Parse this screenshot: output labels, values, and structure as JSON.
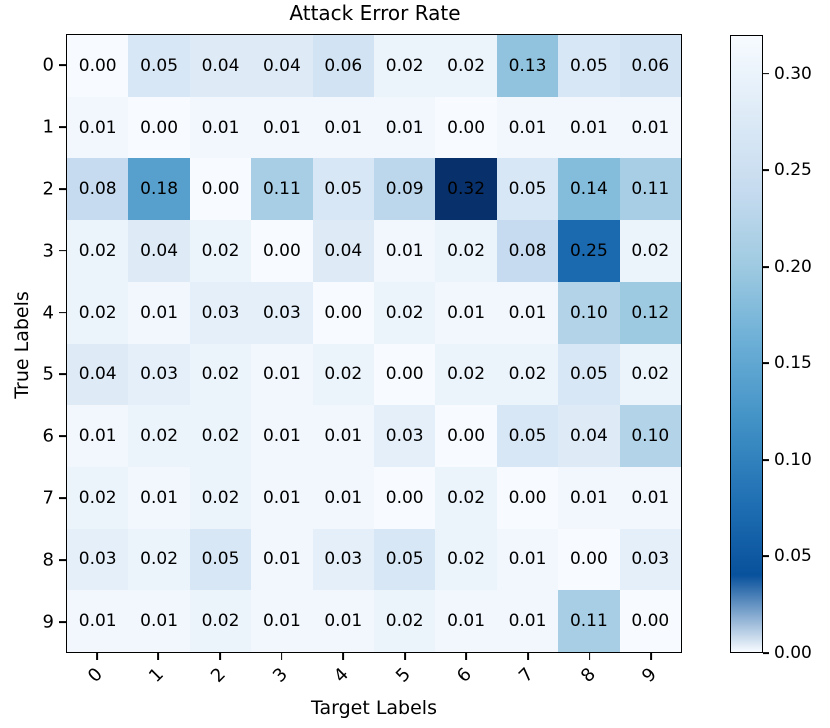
{
  "chart_data": {
    "type": "heatmap",
    "title": "Attack Error Rate",
    "xlabel": "Target Labels",
    "ylabel": "True Labels",
    "x_tick_labels": [
      "0",
      "1",
      "2",
      "3",
      "4",
      "5",
      "6",
      "7",
      "8",
      "9"
    ],
    "y_tick_labels": [
      "0",
      "1",
      "2",
      "3",
      "4",
      "5",
      "6",
      "7",
      "8",
      "9"
    ],
    "matrix": [
      [
        0.0,
        0.05,
        0.04,
        0.04,
        0.06,
        0.02,
        0.02,
        0.13,
        0.05,
        0.06
      ],
      [
        0.01,
        0.0,
        0.01,
        0.01,
        0.01,
        0.01,
        0.0,
        0.01,
        0.01,
        0.01
      ],
      [
        0.08,
        0.18,
        0.0,
        0.11,
        0.05,
        0.09,
        0.32,
        0.05,
        0.14,
        0.11
      ],
      [
        0.02,
        0.04,
        0.02,
        0.0,
        0.04,
        0.01,
        0.02,
        0.08,
        0.25,
        0.02
      ],
      [
        0.02,
        0.01,
        0.03,
        0.03,
        0.0,
        0.02,
        0.01,
        0.01,
        0.1,
        0.12
      ],
      [
        0.04,
        0.03,
        0.02,
        0.01,
        0.02,
        0.0,
        0.02,
        0.02,
        0.05,
        0.02
      ],
      [
        0.01,
        0.02,
        0.02,
        0.01,
        0.01,
        0.03,
        0.0,
        0.05,
        0.04,
        0.1
      ],
      [
        0.02,
        0.01,
        0.02,
        0.01,
        0.01,
        0.0,
        0.02,
        0.0,
        0.01,
        0.01
      ],
      [
        0.03,
        0.02,
        0.05,
        0.01,
        0.03,
        0.05,
        0.02,
        0.01,
        0.0,
        0.03
      ],
      [
        0.01,
        0.01,
        0.02,
        0.01,
        0.01,
        0.02,
        0.01,
        0.01,
        0.11,
        0.0
      ]
    ],
    "value_format_decimals": 2,
    "annotation_color": "#000000",
    "colormap": {
      "name": "Blues",
      "control_colors": [
        "#f7fbff",
        "#deebf7",
        "#c6dbef",
        "#9ecae1",
        "#6baed6",
        "#4292c6",
        "#2171b5",
        "#08519c",
        "#08306b"
      ]
    },
    "vmin": 0.0,
    "vmax": 0.32,
    "colorbar_tick_values": [
      0.0,
      0.05,
      0.1,
      0.15,
      0.2,
      0.25,
      0.3
    ],
    "colorbar_tick_labels": [
      "0.00",
      "0.05",
      "0.10",
      "0.15",
      "0.20",
      "0.25",
      "0.30"
    ],
    "grid": false,
    "legend_position": "right-colorbar"
  }
}
